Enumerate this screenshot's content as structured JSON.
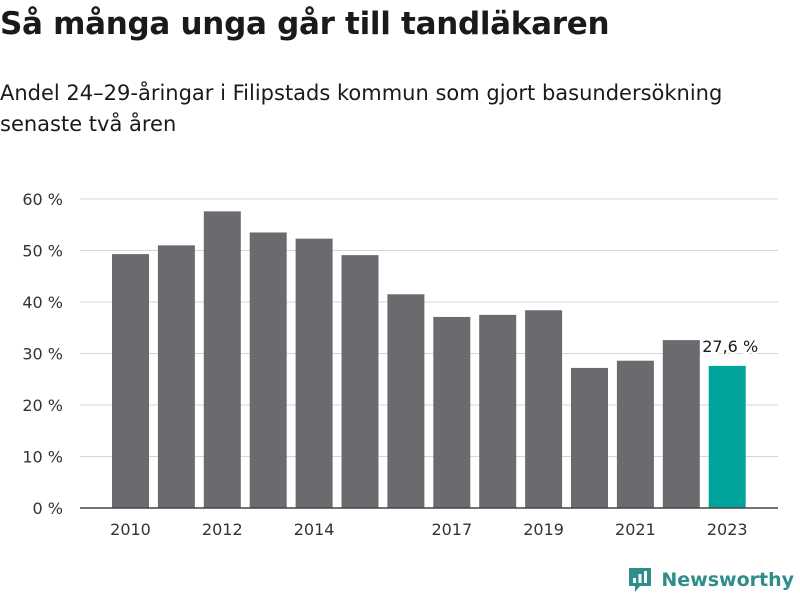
{
  "title": "Så många unga går till tandläkaren",
  "subtitle": "Andel 24–29-åringar i Filipstads kommun som gjort basundersökning senaste två åren",
  "brand": {
    "name": "Newsworthy",
    "icon": "newsworthy-logo-icon",
    "color": "#2f8d8a"
  },
  "chart_data": {
    "type": "bar",
    "categories": [
      "2010",
      "2011",
      "2012",
      "2013",
      "2014",
      "2015",
      "2016",
      "2017",
      "2018",
      "2019",
      "2020",
      "2021",
      "2022",
      "2023"
    ],
    "x_tick_labels": [
      "2010",
      "",
      "2012",
      "",
      "2014",
      "",
      "",
      "2017",
      "",
      "2019",
      "",
      "2021",
      "",
      "2023"
    ],
    "values": [
      49.3,
      51.0,
      57.6,
      53.5,
      52.3,
      49.1,
      41.5,
      37.1,
      37.5,
      38.4,
      27.2,
      28.6,
      32.6,
      27.6
    ],
    "ylim": [
      0,
      60
    ],
    "y_ticks": [
      0,
      10,
      20,
      30,
      40,
      50,
      60
    ],
    "y_tick_labels": [
      "0 %",
      "10 %",
      "20 %",
      "30 %",
      "40 %",
      "50 %",
      "60 %"
    ],
    "xlabel": "",
    "ylabel": "",
    "grid": true,
    "bar_color": "#6b6a6f",
    "highlight_color": "#00a49a",
    "highlight_index": 13,
    "annotation": {
      "index": 13,
      "text": "27,6 %"
    }
  }
}
